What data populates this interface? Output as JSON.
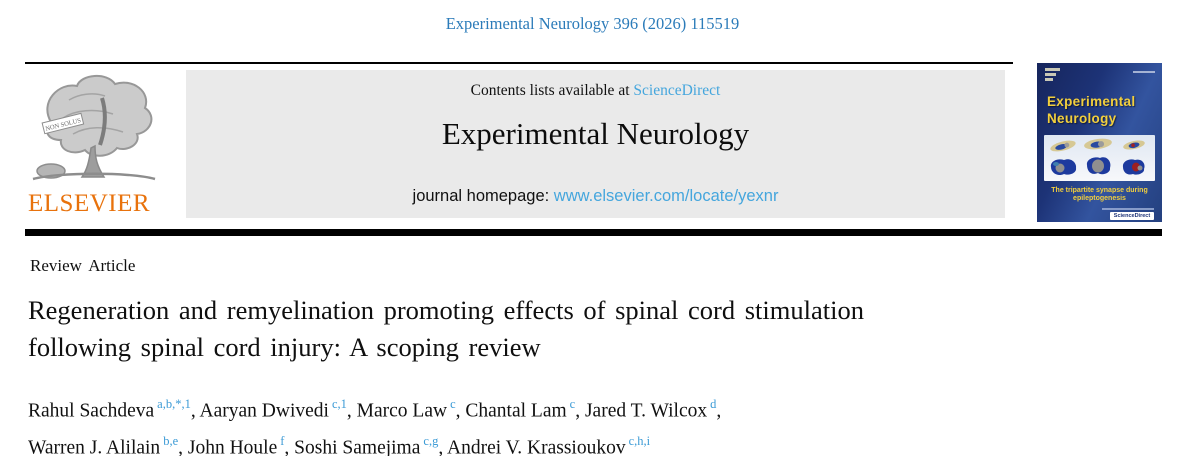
{
  "citation": "Experimental Neurology 396 (2026) 115519",
  "publisher": {
    "name": "ELSEVIER",
    "motto": "NON SOLUS"
  },
  "banner": {
    "contents_prefix": "Contents lists available at ",
    "sciencedirect_link": "ScienceDirect",
    "journal_title": "Experimental Neurology",
    "homepage_label": "journal homepage: ",
    "homepage_url": "www.elsevier.com/locate/yexnr"
  },
  "cover": {
    "title_line1": "Experimental",
    "title_line2": "Neurology",
    "caption_line1": "The tripartite synapse during",
    "caption_line2": "epileptogenesis",
    "badge_label": "ScienceDirect"
  },
  "article": {
    "type_label": "Review Article",
    "title": "Regeneration and remyelination promoting effects of spinal cord stimulation following spinal cord injury: A scoping review",
    "author_lines": [
      [
        {
          "name": "Rahul Sachdeva",
          "affiliations": "a,b,*,1"
        },
        {
          "name": "Aaryan Dwivedi",
          "affiliations": "c,1"
        },
        {
          "name": "Marco Law",
          "affiliations": "c"
        },
        {
          "name": "Chantal Lam",
          "affiliations": "c"
        },
        {
          "name": "Jared T. Wilcox",
          "affiliations": "d"
        }
      ],
      [
        {
          "name": "Warren J. Alilain",
          "affiliations": "b,e"
        },
        {
          "name": "John Houle",
          "affiliations": "f"
        },
        {
          "name": "Soshi Samejima",
          "affiliations": "c,g"
        },
        {
          "name": "Andrei V. Krassioukov",
          "affiliations": "c,h,i"
        }
      ]
    ]
  },
  "colors": {
    "citation_blue": "#2b7bb9",
    "link_blue": "#45a6dd",
    "superscript_blue": "#3c9bd6",
    "elsevier_orange": "#e8720c",
    "banner_gray": "#eaeaea",
    "cover_navy": "#1d3377",
    "cover_yellow": "#f2cf3d"
  }
}
